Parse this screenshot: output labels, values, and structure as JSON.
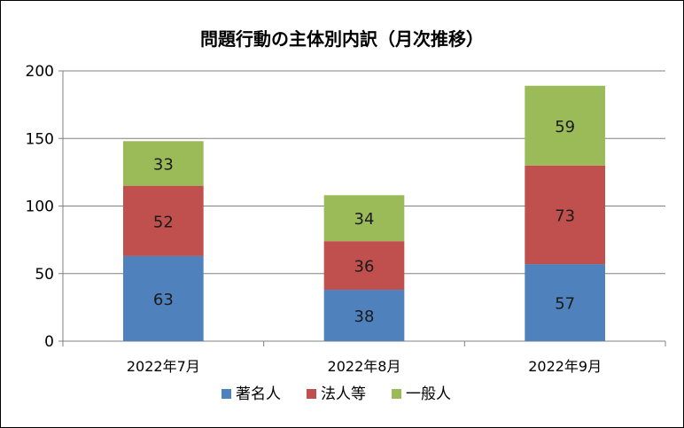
{
  "chart_data": {
    "type": "bar",
    "stacked": true,
    "title": "問題行動の主体別内訳（月次推移）",
    "xlabel": "",
    "ylabel": "",
    "categories": [
      "2022年7月",
      "2022年8月",
      "2022年9月"
    ],
    "series": [
      {
        "name": "著名人",
        "values": [
          63,
          38,
          57
        ],
        "color": "#4f81bd"
      },
      {
        "name": "法人等",
        "values": [
          52,
          36,
          73
        ],
        "color": "#c0504d"
      },
      {
        "name": "一般人",
        "values": [
          33,
          34,
          59
        ],
        "color": "#9bbb59"
      }
    ],
    "ylim": [
      0,
      200
    ],
    "yticks": [
      0,
      50,
      100,
      150,
      200
    ],
    "grid": true,
    "legend_position": "bottom",
    "data_labels": true
  }
}
